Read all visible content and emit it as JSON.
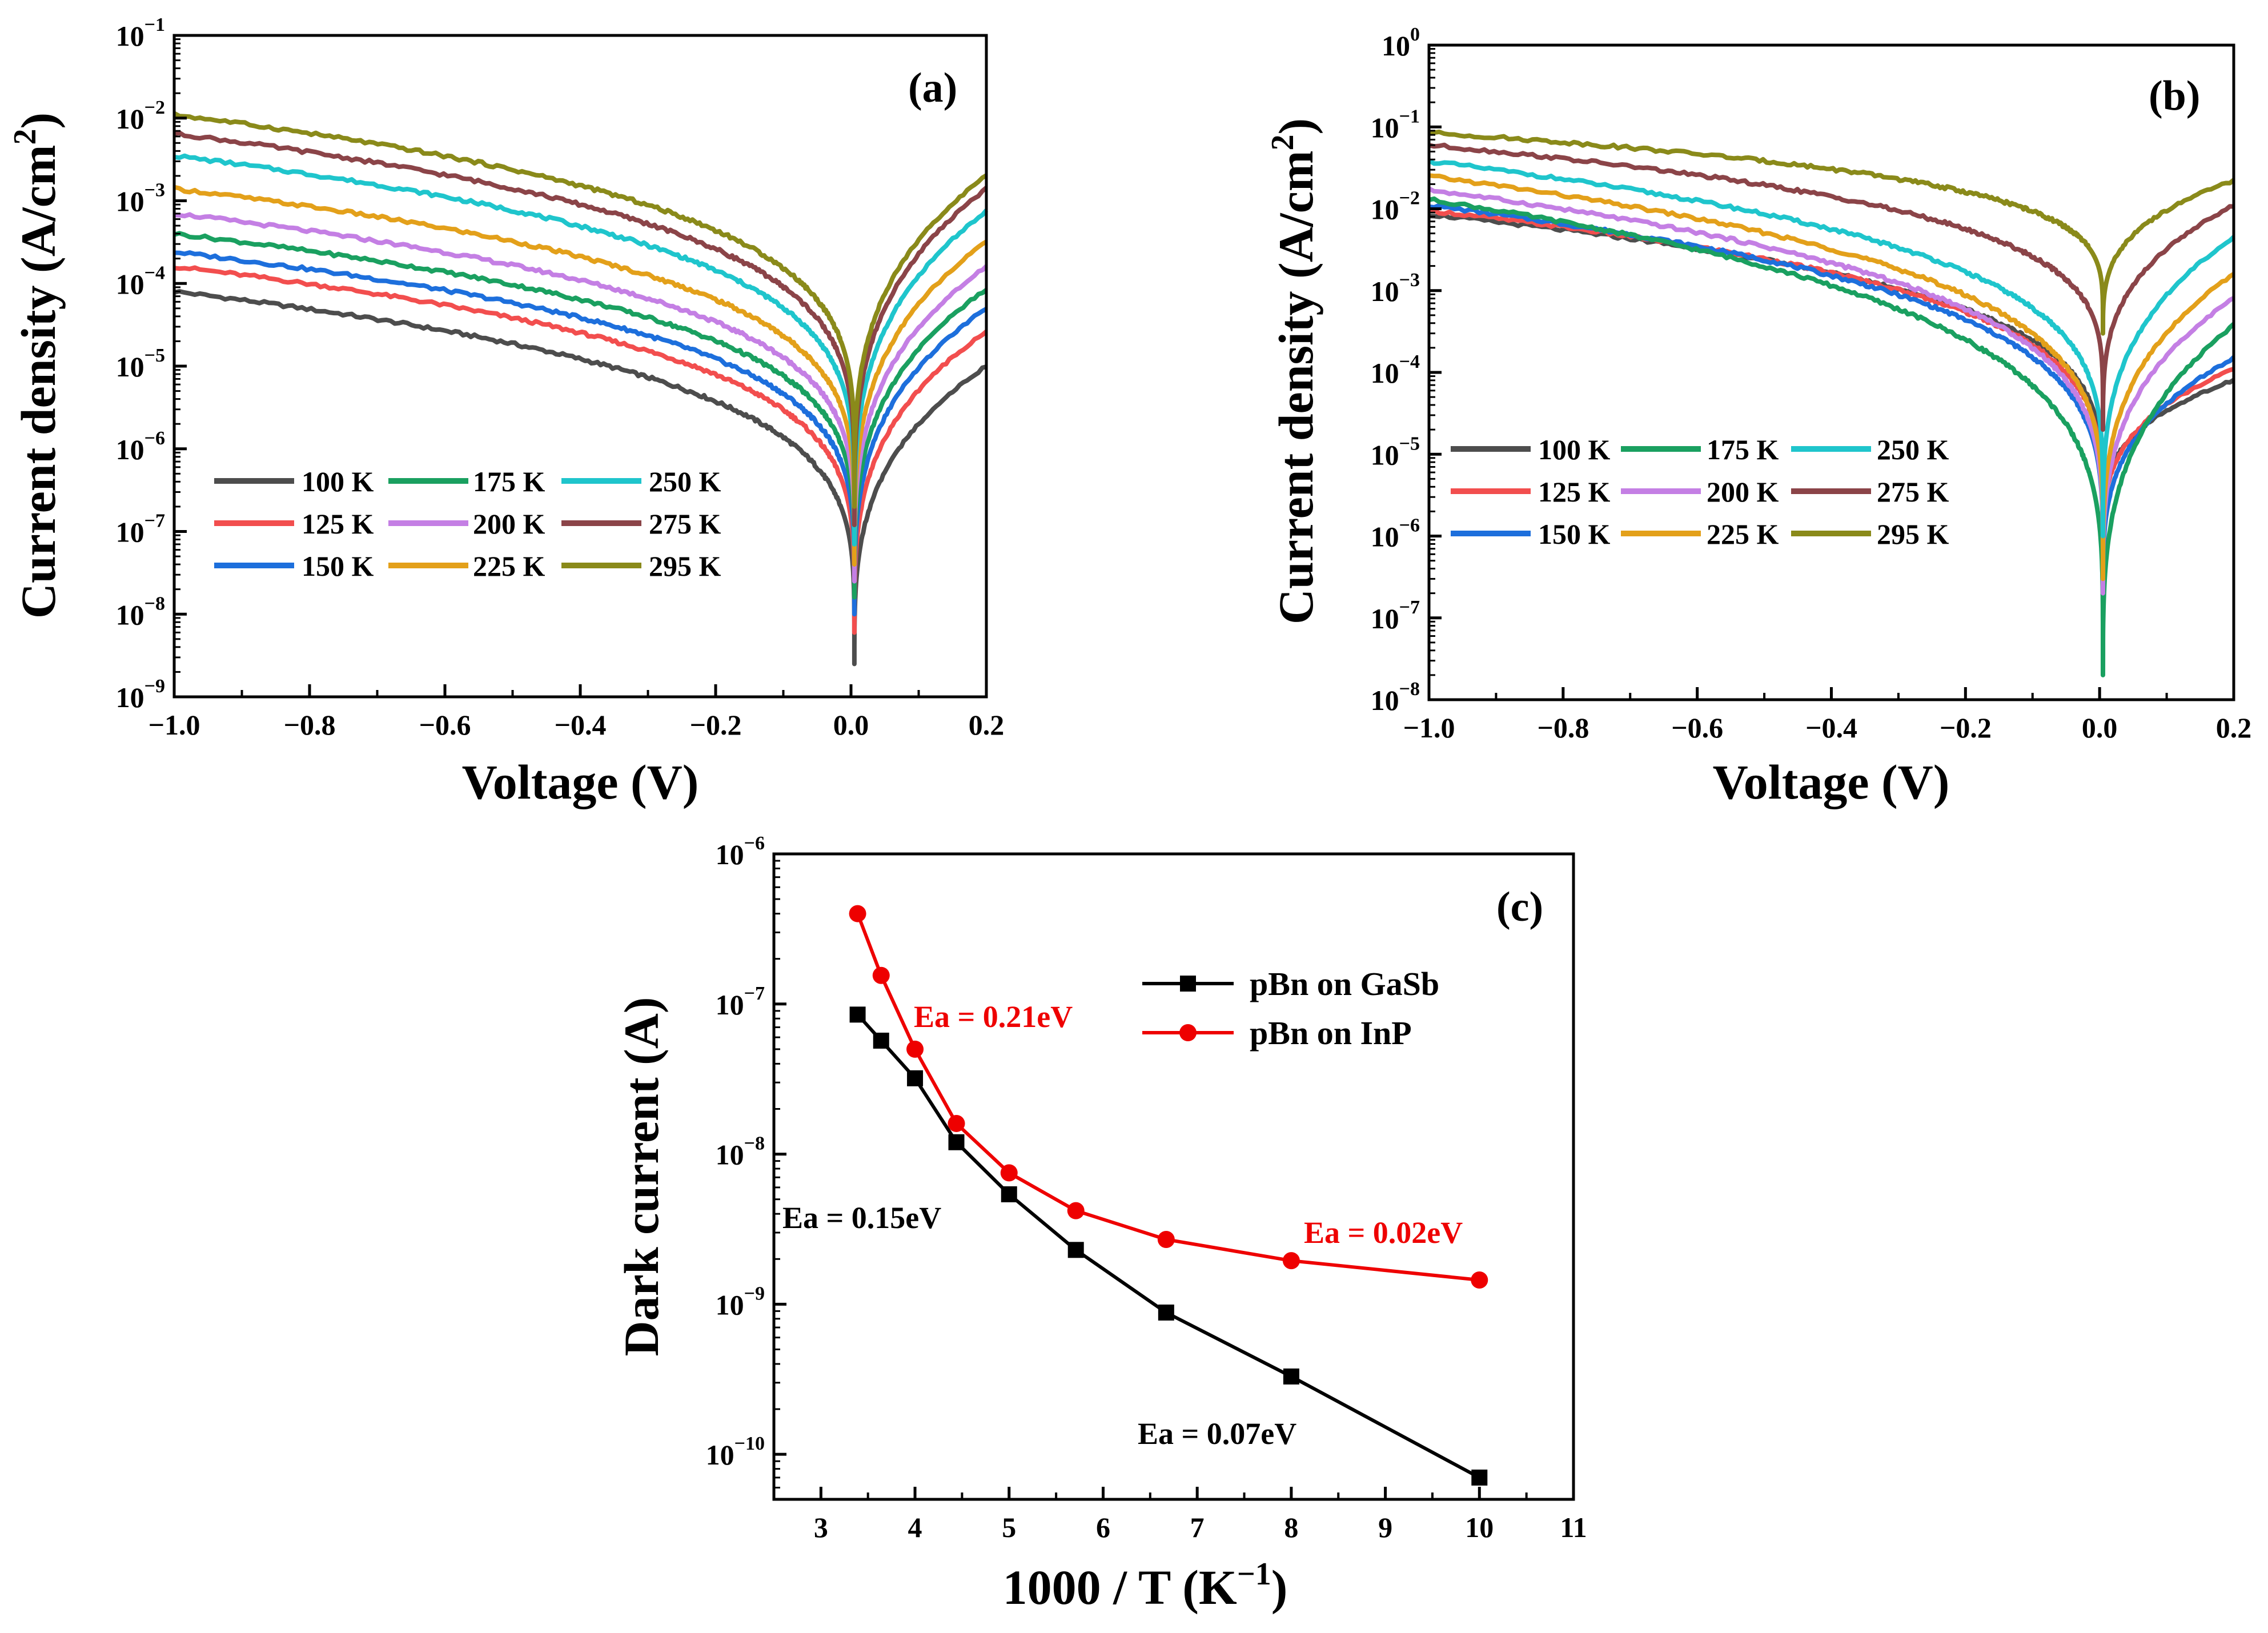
{
  "chart_data": [
    {
      "type": "line",
      "panel_label": "(a)",
      "xlabel": "Voltage (V)",
      "ylabel": "Current density (A/cm",
      "ylabel_sup": "2",
      "ylabel_close": ")",
      "xlim": [
        -1.0,
        0.2
      ],
      "ylim_log10": [
        -9,
        -1
      ],
      "x_ticks": [
        -1.0,
        -0.8,
        -0.6,
        -0.4,
        -0.2,
        0.0,
        0.2
      ],
      "x_tick_labels": [
        "−1.0",
        "−0.8",
        "−0.6",
        "−0.4",
        "−0.2",
        "0.0",
        "0.2"
      ],
      "y_tick_exponents": [
        -9,
        -8,
        -7,
        -6,
        -5,
        -4,
        -3,
        -2,
        -1
      ],
      "y_tick_labels": [
        {
          "base": "10",
          "exp": "−9"
        },
        {
          "base": "10",
          "exp": "−8"
        },
        {
          "base": "10",
          "exp": "−7"
        },
        {
          "base": "10",
          "exp": "−6"
        },
        {
          "base": "10",
          "exp": "−5"
        },
        {
          "base": "10",
          "exp": "−4"
        },
        {
          "base": "10",
          "exp": "−3"
        },
        {
          "base": "10",
          "exp": "−2"
        },
        {
          "base": "10",
          "exp": "−1"
        }
      ],
      "legend": "bottom-left, 3 columns",
      "series": [
        {
          "name": "100 K",
          "color": "#4d4d4d",
          "j_at_minus1": 8e-05,
          "j_at_0p2": 1e-05,
          "dip_min": 2.5e-09
        },
        {
          "name": "125 K",
          "color": "#f24e4e",
          "j_at_minus1": 0.00016,
          "j_at_0p2": 2.6e-05,
          "dip_min": 6e-09
        },
        {
          "name": "150 K",
          "color": "#1d6fdc",
          "j_at_minus1": 0.00024,
          "j_at_0p2": 5e-05,
          "dip_min": 1e-08
        },
        {
          "name": "175 K",
          "color": "#1aa060",
          "j_at_minus1": 0.0004,
          "j_at_0p2": 8.5e-05,
          "dip_min": 1.6e-08
        },
        {
          "name": "200 K",
          "color": "#c47fe4",
          "j_at_minus1": 0.0007,
          "j_at_0p2": 0.00016,
          "dip_min": 2.5e-08
        },
        {
          "name": "225 K",
          "color": "#e3a01a",
          "j_at_minus1": 0.0014,
          "j_at_0p2": 0.00032,
          "dip_min": 4e-08
        },
        {
          "name": "250 K",
          "color": "#1fc5cc",
          "j_at_minus1": 0.0035,
          "j_at_0p2": 0.00075,
          "dip_min": 7e-08
        },
        {
          "name": "275 K",
          "color": "#8b4448",
          "j_at_minus1": 0.0065,
          "j_at_0p2": 0.0014,
          "dip_min": 1.2e-07
        },
        {
          "name": "295 K",
          "color": "#8a8a1a",
          "j_at_minus1": 0.011,
          "j_at_0p2": 0.002,
          "dip_min": 2e-07
        }
      ]
    },
    {
      "type": "line",
      "panel_label": "(b)",
      "xlabel": "Voltage (V)",
      "ylabel": "Current density (A/cm",
      "ylabel_sup": "2",
      "ylabel_close": ")",
      "xlim": [
        -1.0,
        0.2
      ],
      "ylim_log10": [
        -8,
        0
      ],
      "x_ticks": [
        -1.0,
        -0.8,
        -0.6,
        -0.4,
        -0.2,
        0.0,
        0.2
      ],
      "x_tick_labels": [
        "−1.0",
        "−0.8",
        "−0.6",
        "−0.4",
        "−0.2",
        "0.0",
        "0.2"
      ],
      "y_tick_exponents": [
        -8,
        -7,
        -6,
        -5,
        -4,
        -3,
        -2,
        -1,
        0
      ],
      "y_tick_labels": [
        {
          "base": "10",
          "exp": "−8"
        },
        {
          "base": "10",
          "exp": "−7"
        },
        {
          "base": "10",
          "exp": "−6"
        },
        {
          "base": "10",
          "exp": "−5"
        },
        {
          "base": "10",
          "exp": "−4"
        },
        {
          "base": "10",
          "exp": "−3"
        },
        {
          "base": "10",
          "exp": "−2"
        },
        {
          "base": "10",
          "exp": "−1"
        },
        {
          "base": "10",
          "exp": "0"
        }
      ],
      "legend": "middle-left, 3 columns",
      "series": [
        {
          "name": "100 K",
          "color": "#4d4d4d",
          "j_at_minus1": 0.0085,
          "j_at_0p2": 8e-05,
          "dip_min": 1e-06
        },
        {
          "name": "125 K",
          "color": "#f24e4e",
          "j_at_minus1": 0.0095,
          "j_at_0p2": 0.00011,
          "dip_min": 6e-07
        },
        {
          "name": "150 K",
          "color": "#1d6fdc",
          "j_at_minus1": 0.011,
          "j_at_0p2": 0.00015,
          "dip_min": 2e-07
        },
        {
          "name": "175 K",
          "color": "#1aa060",
          "j_at_minus1": 0.013,
          "j_at_0p2": 0.00038,
          "dip_min": 2e-08
        },
        {
          "name": "200 K",
          "color": "#c47fe4",
          "j_at_minus1": 0.017,
          "j_at_0p2": 0.0008,
          "dip_min": 2e-07
        },
        {
          "name": "225 K",
          "color": "#e3a01a",
          "j_at_minus1": 0.025,
          "j_at_0p2": 0.0016,
          "dip_min": 3e-07
        },
        {
          "name": "250 K",
          "color": "#1fc5cc",
          "j_at_minus1": 0.038,
          "j_at_0p2": 0.0045,
          "dip_min": 1e-06
        },
        {
          "name": "275 K",
          "color": "#8b4448",
          "j_at_minus1": 0.06,
          "j_at_0p2": 0.011,
          "dip_min": 2e-05
        },
        {
          "name": "295 K",
          "color": "#8a8a1a",
          "j_at_minus1": 0.085,
          "j_at_0p2": 0.022,
          "dip_min": 0.0003
        }
      ]
    },
    {
      "type": "scatter",
      "panel_label": "(c)",
      "xlabel": "1000 / T (K",
      "xlabel_sup": "−1",
      "xlabel_close": ")",
      "ylabel": "Dark current (A)",
      "xlim": [
        2.5,
        11
      ],
      "ylim_log10": [
        -10.3,
        -6
      ],
      "x_ticks": [
        3,
        4,
        5,
        6,
        7,
        8,
        9,
        10,
        11
      ],
      "x_tick_labels": [
        "3",
        "4",
        "5",
        "6",
        "7",
        "8",
        "9",
        "10",
        "11"
      ],
      "y_tick_exponents": [
        -10,
        -9,
        -8,
        -7,
        -6
      ],
      "y_tick_labels": [
        {
          "base": "10",
          "exp": "−10"
        },
        {
          "base": "10",
          "exp": "−9"
        },
        {
          "base": "10",
          "exp": "−8"
        },
        {
          "base": "10",
          "exp": "−7"
        },
        {
          "base": "10",
          "exp": "−6"
        }
      ],
      "legend": "top-right",
      "series": [
        {
          "name": "pBn on GaSb",
          "color": "#000000",
          "marker": "square",
          "x": [
            3.39,
            3.64,
            4.0,
            4.44,
            5.0,
            5.71,
            6.67,
            8.0,
            10.0
          ],
          "y": [
            8.5e-08,
            5.7e-08,
            3.2e-08,
            1.2e-08,
            5.4e-09,
            2.3e-09,
            8.8e-10,
            3.3e-10,
            7e-11
          ]
        },
        {
          "name": "pBn on InP",
          "color": "#ee0000",
          "marker": "circle",
          "x": [
            3.39,
            3.64,
            4.0,
            4.44,
            5.0,
            5.71,
            6.67,
            8.0,
            10.0
          ],
          "y": [
            4e-07,
            1.55e-07,
            5e-08,
            1.6e-08,
            7.5e-09,
            4.2e-09,
            2.7e-09,
            1.95e-09,
            1.45e-09
          ]
        }
      ],
      "annotations": [
        {
          "text": "Ea = 0.21eV",
          "color": "#ee0000"
        },
        {
          "text": "Ea = 0.15eV",
          "color": "#000000"
        },
        {
          "text": "Ea = 0.02eV",
          "color": "#ee0000"
        },
        {
          "text": "Ea = 0.07eV",
          "color": "#000000"
        }
      ]
    }
  ]
}
